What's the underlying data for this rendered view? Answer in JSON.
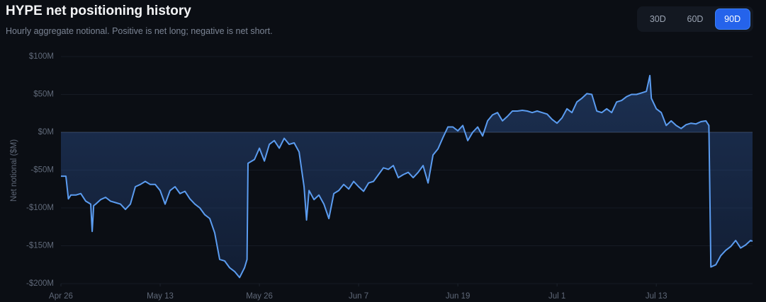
{
  "chart_data": {
    "type": "line",
    "title": "HYPE net positioning history",
    "subtitle": "Hourly aggregate notional. Positive is net long; negative is net short.",
    "y_label": "Net notional ($M)",
    "color": "#5b9cf0",
    "grid": true,
    "fill_to_zero": true,
    "ylim": [
      -200,
      100
    ],
    "yticks": [
      {
        "value": -200,
        "label": "-$200M"
      },
      {
        "value": -150,
        "label": "-$150M"
      },
      {
        "value": -100,
        "label": "-$100M"
      },
      {
        "value": -50,
        "label": "-$50M"
      },
      {
        "value": 0,
        "label": "$0M"
      },
      {
        "value": 50,
        "label": "$50M"
      },
      {
        "value": 100,
        "label": "$100M"
      }
    ],
    "xlim": [
      0,
      139.4
    ],
    "xticks": [
      {
        "value": 0,
        "label": "Apr 26"
      },
      {
        "value": 20,
        "label": "May 13"
      },
      {
        "value": 40,
        "label": "May 26"
      },
      {
        "value": 60,
        "label": "Jun 7"
      },
      {
        "value": 80,
        "label": "Jun 19"
      },
      {
        "value": 100,
        "label": "Jul 1"
      },
      {
        "value": 120,
        "label": "Jul 13"
      }
    ],
    "x": [
      0,
      1,
      1.5,
      2,
      3,
      4,
      5,
      6,
      6.3,
      6.6,
      7,
      8,
      9,
      10,
      11,
      12,
      13,
      14,
      15,
      16,
      17,
      18,
      19,
      20,
      21,
      22,
      23,
      24,
      25,
      26,
      27,
      28,
      29,
      30,
      31,
      32,
      33,
      34,
      35,
      36,
      37,
      37.5,
      37.7,
      39,
      40,
      41,
      42,
      43,
      44,
      45,
      46,
      47,
      48,
      49,
      49.5,
      50,
      51,
      52,
      53,
      54,
      55,
      56,
      57,
      58,
      59,
      60,
      61,
      62,
      63,
      64,
      65,
      66,
      67,
      68,
      69,
      70,
      71,
      72,
      73,
      74,
      75,
      76,
      77,
      78,
      79,
      80,
      81,
      82,
      83,
      84,
      85,
      86,
      87,
      88,
      89,
      90,
      91,
      92,
      93,
      94,
      95,
      96,
      97,
      98,
      99,
      100,
      101,
      102,
      103,
      104,
      105,
      106,
      107,
      108,
      109,
      110,
      111,
      112,
      113,
      114,
      115,
      116,
      117,
      118,
      118.7,
      119,
      120,
      121,
      122,
      123,
      124,
      125,
      126,
      127,
      128,
      129,
      130,
      130.6,
      131,
      132,
      133,
      134,
      135,
      136,
      137,
      138,
      139,
      139.4
    ],
    "values": [
      -58,
      -58,
      -88,
      -83,
      -83,
      -81,
      -91,
      -95,
      -131,
      -97,
      -95,
      -89,
      -86,
      -91,
      -93,
      -95,
      -102,
      -95,
      -72,
      -69,
      -65,
      -69,
      -69,
      -77,
      -95,
      -77,
      -72,
      -81,
      -78,
      -88,
      -95,
      -100,
      -109,
      -114,
      -133,
      -168,
      -170,
      -179,
      -184,
      -192,
      -179,
      -168,
      -41,
      -36,
      -21,
      -38,
      -16,
      -11,
      -21,
      -8,
      -16,
      -14,
      -26,
      -72,
      -116,
      -77,
      -89,
      -83,
      -95,
      -114,
      -81,
      -77,
      -69,
      -75,
      -65,
      -72,
      -78,
      -67,
      -65,
      -56,
      -47,
      -49,
      -44,
      -60,
      -56,
      -53,
      -60,
      -53,
      -44,
      -67,
      -30,
      -22,
      -7,
      7,
      7,
      2,
      9,
      -11,
      0,
      7,
      -5,
      15,
      23,
      26,
      15,
      21,
      28,
      28,
      29,
      28,
      26,
      28,
      26,
      24,
      17,
      12,
      19,
      31,
      26,
      40,
      45,
      51,
      50,
      28,
      26,
      31,
      26,
      40,
      42,
      47,
      50,
      50,
      52,
      54,
      75,
      45,
      31,
      26,
      9,
      15,
      9,
      5,
      10,
      12,
      11,
      14,
      15,
      9,
      -178,
      -175,
      -163,
      -156,
      -151,
      -143,
      -153,
      -149,
      -143,
      -144
    ]
  },
  "controls": {
    "options": [
      "30D",
      "60D",
      "90D"
    ],
    "selected": 2
  }
}
